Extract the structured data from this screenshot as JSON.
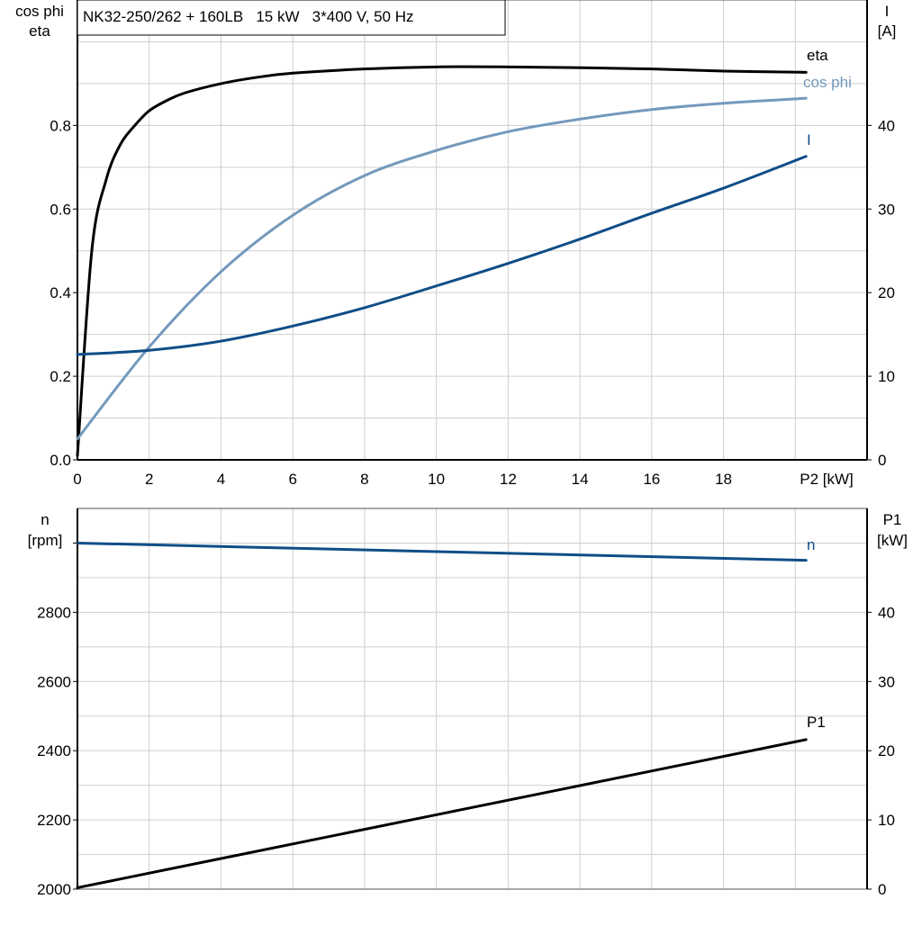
{
  "chart_data": [
    {
      "type": "line",
      "title": "NK32-250/262 + 160LB   15 kW   3*400 V, 50 Hz",
      "xlabel": "P2 [kW]",
      "ylabel_left": [
        "cos phi",
        "eta"
      ],
      "ylabel_right": [
        "I",
        "[A]"
      ],
      "xlim": [
        0,
        22
      ],
      "ylim_left": [
        0,
        1.1
      ],
      "ylim_right": [
        0,
        55
      ],
      "x_ticks": [
        0,
        2,
        4,
        6,
        8,
        10,
        12,
        14,
        16,
        18
      ],
      "y_ticks_left": [
        "0.0",
        "0.2",
        "0.4",
        "0.6",
        "0.8"
      ],
      "y_ticks_right": [
        "0",
        "10",
        "20",
        "30",
        "40"
      ],
      "grid": true,
      "series": [
        {
          "name": "eta",
          "axis": "left",
          "color": "#000000",
          "x": [
            0,
            0.4,
            0.8,
            1.2,
            1.6,
            2,
            2.5,
            3,
            4,
            5,
            6,
            8,
            10,
            12,
            14,
            16,
            18,
            20.3
          ],
          "y": [
            0.01,
            0.5,
            0.67,
            0.755,
            0.8,
            0.835,
            0.86,
            0.878,
            0.9,
            0.915,
            0.925,
            0.935,
            0.94,
            0.94,
            0.938,
            0.935,
            0.93,
            0.927
          ]
        },
        {
          "name": "cos phi",
          "axis": "left",
          "color": "#7399bb",
          "x": [
            0,
            2,
            4,
            6,
            8,
            10,
            12,
            14,
            16,
            18,
            20.3
          ],
          "y": [
            0.05,
            0.27,
            0.45,
            0.585,
            0.68,
            0.74,
            0.785,
            0.815,
            0.838,
            0.853,
            0.865
          ]
        },
        {
          "name": "I",
          "axis": "right",
          "color": "#0f4d87",
          "x": [
            0,
            2,
            4,
            6,
            8,
            10,
            12,
            14,
            16,
            18,
            20.3
          ],
          "y": [
            12.6,
            13.1,
            14.2,
            16,
            18.2,
            20.8,
            23.5,
            26.4,
            29.5,
            32.5,
            36.3
          ]
        }
      ]
    },
    {
      "type": "line",
      "ylabel_left": [
        "n",
        "[rpm]"
      ],
      "ylabel_right": [
        "P1",
        "[kW]"
      ],
      "xlim": [
        0,
        22
      ],
      "ylim_left": [
        2000,
        3100
      ],
      "ylim_right": [
        0,
        55
      ],
      "y_ticks_left": [
        "2000",
        "2200",
        "2400",
        "2600",
        "2800"
      ],
      "y_ticks_right": [
        "0",
        "10",
        "20",
        "30",
        "40"
      ],
      "grid": true,
      "series": [
        {
          "name": "n",
          "axis": "left",
          "color": "#0f4d87",
          "x": [
            0,
            20.3
          ],
          "y": [
            3000,
            2950
          ]
        },
        {
          "name": "P1",
          "axis": "right",
          "color": "#000000",
          "x": [
            0,
            20.3
          ],
          "y": [
            0.2,
            21.6
          ]
        }
      ]
    }
  ]
}
